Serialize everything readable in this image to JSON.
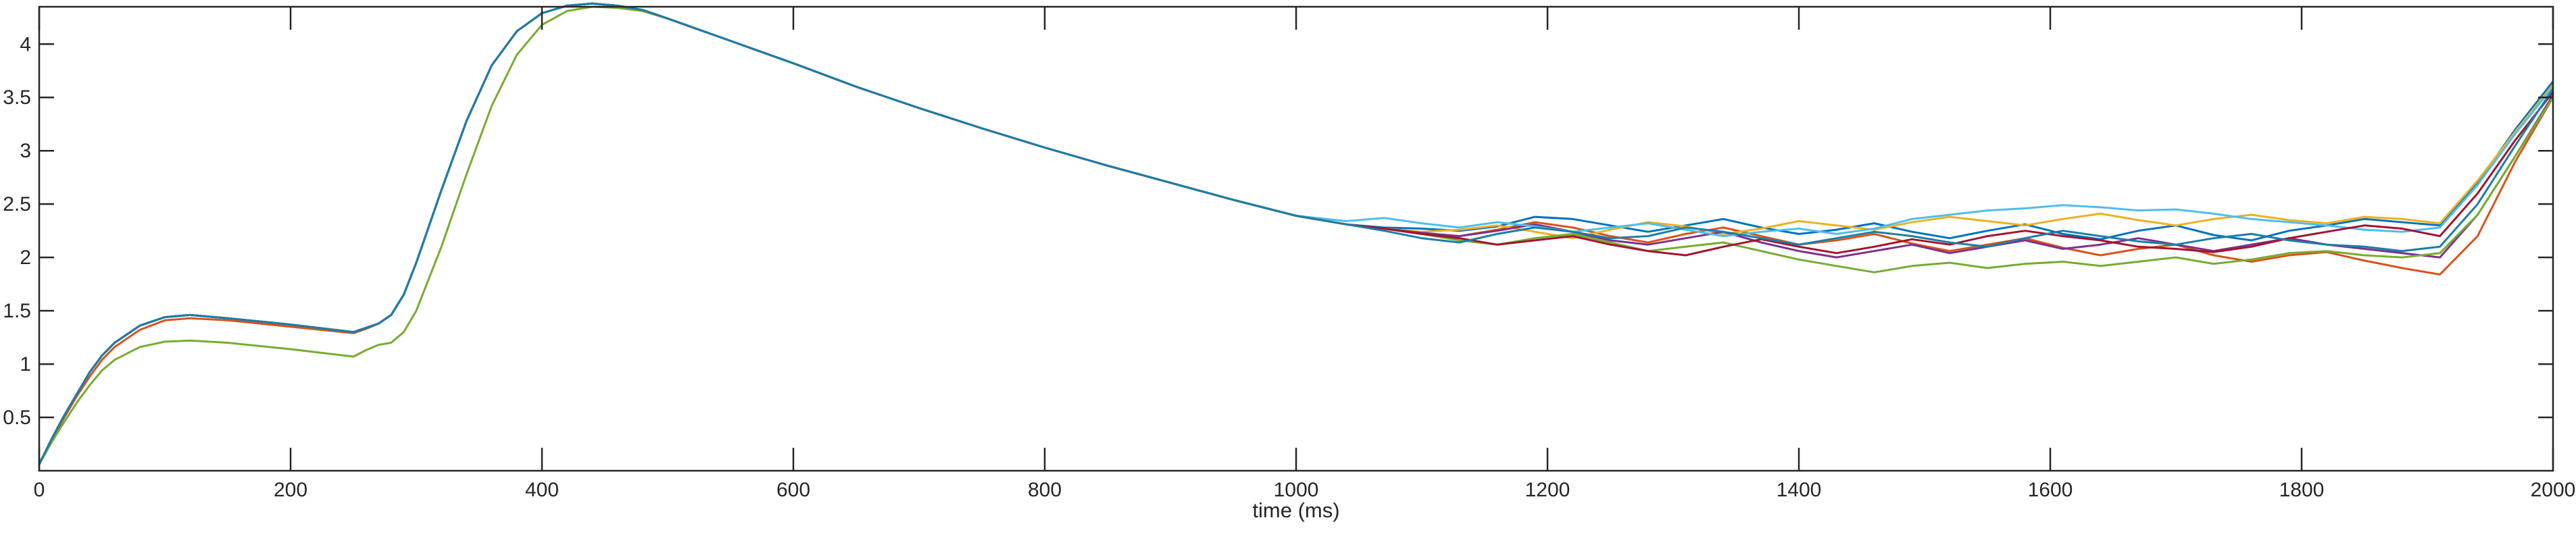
{
  "chart_data": {
    "type": "line",
    "xlabel": "time (ms)",
    "ylabel": "",
    "xlim": [
      0,
      2000
    ],
    "ylim": [
      0,
      4.35
    ],
    "xticks": [
      0,
      200,
      400,
      600,
      800,
      1000,
      1200,
      1400,
      1600,
      1800,
      2000
    ],
    "yticks": [
      0.5,
      1,
      1.5,
      2,
      2.5,
      3,
      3.5,
      4
    ],
    "ytick_labels": [
      "0.5",
      "1",
      "1.5",
      "2",
      "2.5",
      "3",
      "3.5",
      "4"
    ],
    "grid": false,
    "legend": "none",
    "x": [
      0,
      10,
      20,
      30,
      40,
      50,
      60,
      80,
      100,
      120,
      150,
      200,
      250,
      260,
      270,
      280,
      290,
      300,
      320,
      340,
      360,
      380,
      400,
      420,
      440,
      460,
      480,
      500,
      550,
      600,
      650,
      700,
      750,
      800,
      850,
      900,
      950,
      1000,
      1040,
      1070,
      1100,
      1130,
      1160,
      1190,
      1220,
      1250,
      1280,
      1310,
      1340,
      1370,
      1400,
      1430,
      1460,
      1490,
      1520,
      1550,
      1580,
      1610,
      1640,
      1670,
      1700,
      1730,
      1760,
      1790,
      1820,
      1850,
      1880,
      1910,
      1940,
      1970,
      2000
    ],
    "series": [
      {
        "color": "#0072bd",
        "values": [
          0.06,
          0.3,
          0.52,
          0.72,
          0.92,
          1.08,
          1.2,
          1.36,
          1.44,
          1.46,
          1.43,
          1.37,
          1.3,
          1.34,
          1.38,
          1.46,
          1.65,
          1.95,
          2.63,
          3.28,
          3.8,
          4.12,
          4.29,
          4.36,
          4.38,
          4.36,
          4.32,
          4.24,
          4.03,
          3.82,
          3.6,
          3.4,
          3.21,
          3.03,
          2.86,
          2.7,
          2.54,
          2.39,
          2.31,
          2.28,
          2.27,
          2.25,
          2.29,
          2.38,
          2.36,
          2.3,
          2.24,
          2.3,
          2.36,
          2.28,
          2.22,
          2.26,
          2.32,
          2.24,
          2.18,
          2.25,
          2.31,
          2.22,
          2.17,
          2.25,
          2.3,
          2.21,
          2.16,
          2.25,
          2.3,
          2.36,
          2.33,
          2.3,
          2.7,
          3.2,
          3.65
        ]
      },
      {
        "color": "#d95319",
        "values": [
          0.06,
          0.29,
          0.5,
          0.7,
          0.88,
          1.04,
          1.16,
          1.32,
          1.41,
          1.43,
          1.41,
          1.35,
          1.29,
          1.33,
          1.38,
          1.46,
          1.65,
          1.95,
          2.63,
          3.28,
          3.8,
          4.12,
          4.29,
          4.36,
          4.38,
          4.36,
          4.32,
          4.24,
          4.03,
          3.82,
          3.6,
          3.4,
          3.21,
          3.03,
          2.86,
          2.7,
          2.54,
          2.39,
          2.31,
          2.27,
          2.22,
          2.2,
          2.26,
          2.33,
          2.28,
          2.2,
          2.14,
          2.22,
          2.28,
          2.2,
          2.12,
          2.16,
          2.22,
          2.13,
          2.06,
          2.12,
          2.18,
          2.09,
          2.02,
          2.08,
          2.12,
          2.02,
          1.96,
          2.02,
          2.05,
          1.97,
          1.9,
          1.84,
          2.2,
          2.9,
          3.5
        ]
      },
      {
        "color": "#edb120",
        "values": [
          0.06,
          0.3,
          0.52,
          0.72,
          0.92,
          1.08,
          1.2,
          1.36,
          1.44,
          1.46,
          1.43,
          1.37,
          1.3,
          1.34,
          1.38,
          1.46,
          1.65,
          1.95,
          2.63,
          3.28,
          3.8,
          4.12,
          4.29,
          4.36,
          4.38,
          4.36,
          4.32,
          4.24,
          4.03,
          3.82,
          3.6,
          3.4,
          3.21,
          3.03,
          2.86,
          2.7,
          2.54,
          2.39,
          2.31,
          2.27,
          2.24,
          2.26,
          2.3,
          2.24,
          2.18,
          2.26,
          2.33,
          2.29,
          2.22,
          2.27,
          2.34,
          2.3,
          2.26,
          2.33,
          2.38,
          2.34,
          2.3,
          2.36,
          2.41,
          2.35,
          2.3,
          2.36,
          2.4,
          2.35,
          2.32,
          2.38,
          2.36,
          2.32,
          2.72,
          3.18,
          3.62
        ]
      },
      {
        "color": "#7e2f8e",
        "values": [
          0.06,
          0.3,
          0.52,
          0.72,
          0.92,
          1.08,
          1.2,
          1.36,
          1.44,
          1.46,
          1.43,
          1.37,
          1.3,
          1.34,
          1.38,
          1.46,
          1.65,
          1.95,
          2.63,
          3.28,
          3.8,
          4.12,
          4.29,
          4.36,
          4.38,
          4.36,
          4.32,
          4.24,
          4.03,
          3.82,
          3.6,
          3.4,
          3.21,
          3.03,
          2.86,
          2.7,
          2.54,
          2.39,
          2.31,
          2.27,
          2.23,
          2.2,
          2.25,
          2.31,
          2.24,
          2.16,
          2.12,
          2.18,
          2.24,
          2.14,
          2.06,
          2.0,
          2.06,
          2.12,
          2.04,
          2.1,
          2.16,
          2.08,
          2.12,
          2.18,
          2.12,
          2.06,
          2.12,
          2.18,
          2.12,
          2.08,
          2.04,
          2.0,
          2.4,
          2.95,
          3.52
        ]
      },
      {
        "color": "#77ac30",
        "values": [
          0.06,
          0.27,
          0.46,
          0.64,
          0.8,
          0.94,
          1.04,
          1.16,
          1.21,
          1.22,
          1.2,
          1.14,
          1.07,
          1.13,
          1.18,
          1.2,
          1.3,
          1.5,
          2.1,
          2.78,
          3.42,
          3.9,
          4.18,
          4.31,
          4.35,
          4.34,
          4.31,
          4.24,
          4.03,
          3.82,
          3.6,
          3.4,
          3.21,
          3.03,
          2.86,
          2.7,
          2.54,
          2.39,
          2.31,
          2.27,
          2.22,
          2.16,
          2.12,
          2.18,
          2.22,
          2.14,
          2.06,
          2.1,
          2.14,
          2.06,
          1.98,
          1.92,
          1.86,
          1.92,
          1.95,
          1.9,
          1.94,
          1.96,
          1.92,
          1.96,
          2.0,
          1.94,
          1.98,
          2.04,
          2.06,
          2.02,
          2.0,
          2.04,
          2.4,
          2.95,
          3.5
        ]
      },
      {
        "color": "#4dbeee",
        "values": [
          0.06,
          0.3,
          0.52,
          0.72,
          0.92,
          1.08,
          1.2,
          1.36,
          1.44,
          1.46,
          1.43,
          1.37,
          1.3,
          1.34,
          1.38,
          1.46,
          1.65,
          1.95,
          2.63,
          3.28,
          3.8,
          4.12,
          4.29,
          4.36,
          4.38,
          4.36,
          4.32,
          4.24,
          4.03,
          3.82,
          3.6,
          3.4,
          3.21,
          3.03,
          2.86,
          2.7,
          2.54,
          2.39,
          2.34,
          2.37,
          2.32,
          2.28,
          2.33,
          2.29,
          2.24,
          2.28,
          2.32,
          2.26,
          2.2,
          2.24,
          2.27,
          2.22,
          2.27,
          2.36,
          2.4,
          2.44,
          2.46,
          2.49,
          2.47,
          2.44,
          2.45,
          2.41,
          2.36,
          2.33,
          2.3,
          2.26,
          2.24,
          2.28,
          2.68,
          3.16,
          3.6
        ]
      },
      {
        "color": "#a2142f",
        "values": [
          0.06,
          0.3,
          0.52,
          0.72,
          0.92,
          1.08,
          1.2,
          1.36,
          1.44,
          1.46,
          1.43,
          1.37,
          1.3,
          1.34,
          1.38,
          1.46,
          1.65,
          1.95,
          2.63,
          3.28,
          3.8,
          4.12,
          4.29,
          4.36,
          4.38,
          4.36,
          4.32,
          4.24,
          4.03,
          3.82,
          3.6,
          3.4,
          3.21,
          3.03,
          2.86,
          2.7,
          2.54,
          2.39,
          2.31,
          2.27,
          2.22,
          2.18,
          2.12,
          2.16,
          2.2,
          2.12,
          2.06,
          2.02,
          2.1,
          2.17,
          2.1,
          2.04,
          2.1,
          2.17,
          2.12,
          2.2,
          2.25,
          2.2,
          2.16,
          2.1,
          2.08,
          2.05,
          2.1,
          2.18,
          2.24,
          2.3,
          2.27,
          2.2,
          2.6,
          3.1,
          3.55
        ]
      },
      {
        "color": "#1a7fa8",
        "values": [
          0.06,
          0.3,
          0.52,
          0.72,
          0.92,
          1.08,
          1.2,
          1.36,
          1.44,
          1.46,
          1.43,
          1.37,
          1.3,
          1.34,
          1.38,
          1.46,
          1.65,
          1.95,
          2.63,
          3.28,
          3.8,
          4.12,
          4.29,
          4.36,
          4.38,
          4.36,
          4.32,
          4.24,
          4.03,
          3.82,
          3.6,
          3.4,
          3.21,
          3.03,
          2.86,
          2.7,
          2.54,
          2.39,
          2.31,
          2.25,
          2.18,
          2.14,
          2.22,
          2.28,
          2.24,
          2.18,
          2.2,
          2.28,
          2.24,
          2.18,
          2.12,
          2.18,
          2.24,
          2.2,
          2.14,
          2.1,
          2.18,
          2.25,
          2.2,
          2.15,
          2.12,
          2.18,
          2.22,
          2.16,
          2.12,
          2.1,
          2.06,
          2.1,
          2.5,
          3.05,
          3.58
        ]
      }
    ]
  }
}
